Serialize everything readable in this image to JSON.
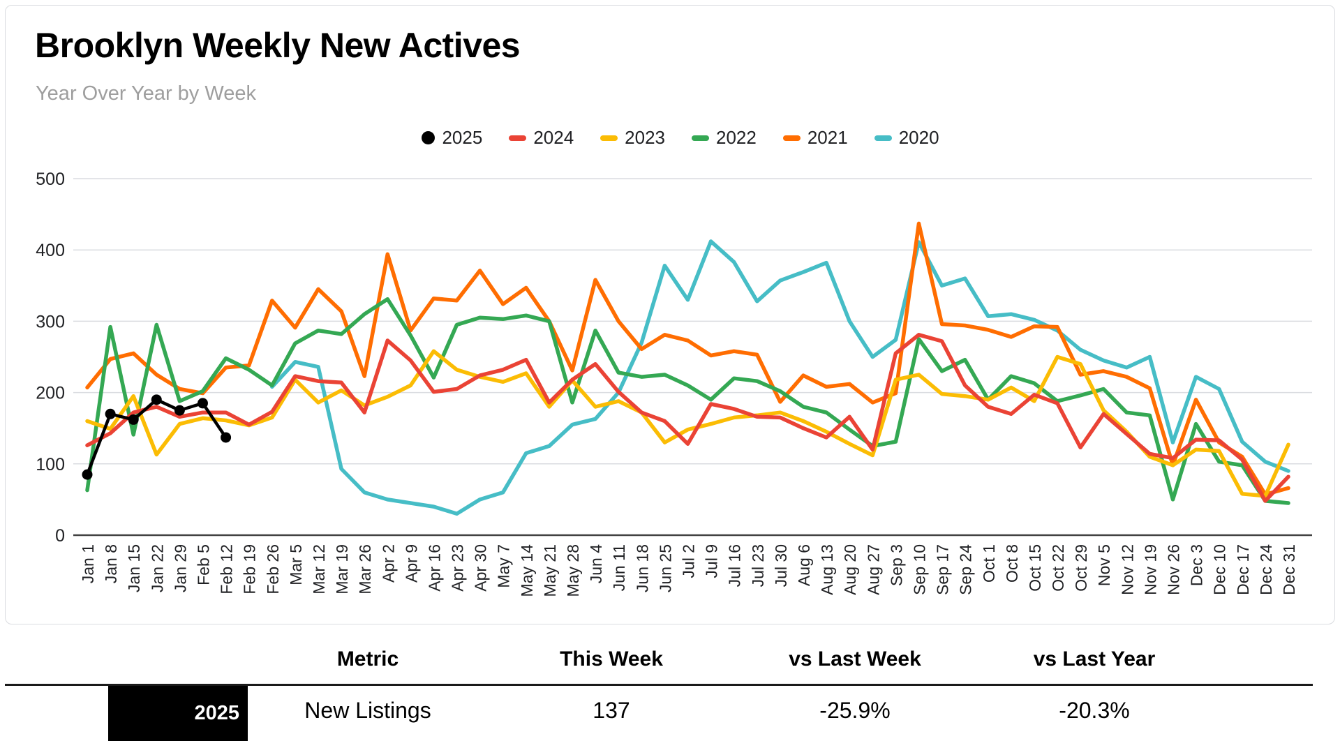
{
  "header": {
    "title": "Brooklyn Weekly New Actives",
    "subtitle": "Year Over Year by Week"
  },
  "chart_data": {
    "type": "line",
    "title": "Brooklyn Weekly New Actives",
    "subtitle": "Year Over Year by Week",
    "xlabel": "",
    "ylabel": "",
    "ylim": [
      0,
      500
    ],
    "yticks": [
      0,
      100,
      200,
      300,
      400,
      500
    ],
    "grid": true,
    "legend_position": "top",
    "x_labels": [
      "Jan 1",
      "Jan 8",
      "Jan 15",
      "Jan 22",
      "Jan 29",
      "Feb 5",
      "Feb 12",
      "Feb 19",
      "Feb 26",
      "Mar 5",
      "Mar 12",
      "Mar 19",
      "Mar 26",
      "Apr 2",
      "Apr 9",
      "Apr 16",
      "Apr 23",
      "Apr 30",
      "May 7",
      "May 14",
      "May 21",
      "May 28",
      "Jun 4",
      "Jun 11",
      "Jun 18",
      "Jun 25",
      "Jul 2",
      "Jul 9",
      "Jul 16",
      "Jul 23",
      "Jul 30",
      "Aug 6",
      "Aug 13",
      "Aug 20",
      "Aug 27",
      "Sep 3",
      "Sep 10",
      "Sep 17",
      "Sep 24",
      "Oct 1",
      "Oct 8",
      "Oct 15",
      "Oct 22",
      "Oct 29",
      "Nov 5",
      "Nov 12",
      "Nov 19",
      "Nov 26",
      "Dec 3",
      "Dec 10",
      "Dec 17",
      "Dec 24",
      "Dec 31"
    ],
    "series": [
      {
        "name": "2025",
        "color": "#000000",
        "marker": "circle",
        "values": [
          85,
          170,
          162,
          190,
          175,
          185,
          137
        ]
      },
      {
        "name": "2024",
        "color": "#EA4335",
        "values": [
          126,
          143,
          172,
          180,
          166,
          172,
          172,
          155,
          173,
          223,
          216,
          214,
          172,
          273,
          245,
          201,
          205,
          224,
          232,
          246,
          186,
          218,
          240,
          201,
          172,
          160,
          128,
          184,
          177,
          166,
          165,
          150,
          137,
          166,
          120,
          255,
          281,
          272,
          210,
          180,
          170,
          197,
          185,
          123,
          170,
          142,
          114,
          108,
          134,
          133,
          106,
          48,
          82
        ]
      },
      {
        "name": "2023",
        "color": "#FBBC04",
        "values": [
          160,
          149,
          195,
          113,
          156,
          164,
          161,
          154,
          165,
          218,
          186,
          203,
          182,
          194,
          210,
          258,
          232,
          222,
          215,
          227,
          180,
          217,
          180,
          188,
          172,
          130,
          148,
          156,
          165,
          168,
          172,
          160,
          145,
          128,
          112,
          218,
          225,
          198,
          195,
          190,
          207,
          188,
          250,
          240,
          175,
          145,
          110,
          98,
          120,
          118,
          58,
          55,
          127
        ]
      },
      {
        "name": "2022",
        "color": "#34A853",
        "values": [
          63,
          292,
          141,
          295,
          188,
          202,
          248,
          232,
          210,
          269,
          287,
          282,
          310,
          331,
          280,
          221,
          295,
          305,
          303,
          308,
          300,
          186,
          287,
          228,
          222,
          225,
          210,
          190,
          220,
          216,
          202,
          180,
          172,
          148,
          125,
          131,
          275,
          230,
          246,
          190,
          223,
          213,
          188,
          196,
          205,
          172,
          168,
          50,
          156,
          103,
          98,
          48,
          45
        ]
      },
      {
        "name": "2021",
        "color": "#FF6D01",
        "values": [
          207,
          247,
          255,
          225,
          205,
          199,
          235,
          238,
          329,
          291,
          345,
          314,
          223,
          394,
          287,
          332,
          329,
          371,
          324,
          347,
          300,
          231,
          358,
          300,
          261,
          281,
          273,
          252,
          258,
          253,
          187,
          224,
          208,
          212,
          186,
          199,
          437,
          296,
          294,
          288,
          278,
          293,
          292,
          225,
          230,
          222,
          206,
          98,
          190,
          130,
          110,
          57,
          66
        ]
      },
      {
        "name": "2020",
        "color": "#46BDC6",
        "values": [
          null,
          null,
          null,
          null,
          null,
          null,
          null,
          null,
          208,
          243,
          236,
          93,
          60,
          50,
          45,
          40,
          30,
          50,
          60,
          115,
          125,
          155,
          163,
          200,
          270,
          378,
          330,
          412,
          383,
          328,
          357,
          369,
          382,
          300,
          250,
          274,
          411,
          350,
          360,
          307,
          310,
          302,
          287,
          260,
          245,
          235,
          250,
          130,
          222,
          205,
          131,
          103,
          90
        ]
      }
    ]
  },
  "table": {
    "headers": [
      "Metric",
      "This Week",
      "vs Last Week",
      "vs Last Year"
    ],
    "row": {
      "year_badge": "2025",
      "metric": "New Listings",
      "this_week": "137",
      "vs_last_week": "-25.9%",
      "vs_last_year": "-20.3%"
    }
  },
  "style": {
    "grid_color": "#dadce0",
    "axis_color": "#424242",
    "tick_label_color": "#202124",
    "subtitle_color": "#9e9e9e"
  }
}
